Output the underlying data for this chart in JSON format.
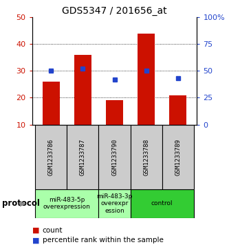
{
  "title": "GDS5347 / 201656_at",
  "samples": [
    "GSM1233786",
    "GSM1233787",
    "GSM1233790",
    "GSM1233788",
    "GSM1233789"
  ],
  "counts": [
    26,
    36,
    19,
    44,
    21
  ],
  "percentiles": [
    50,
    52,
    42,
    50,
    43
  ],
  "left_ylim": [
    10,
    50
  ],
  "right_ylim": [
    0,
    100
  ],
  "left_yticks": [
    10,
    20,
    30,
    40,
    50
  ],
  "right_yticks": [
    0,
    25,
    50,
    75,
    100
  ],
  "right_yticklabels": [
    "0",
    "25",
    "50",
    "75",
    "100%"
  ],
  "bar_color": "#cc1100",
  "marker_color": "#2244cc",
  "grid_color": "#444444",
  "protocol_groups": [
    {
      "label": "miR-483-5p\noverexpression",
      "samples": [
        "GSM1233786",
        "GSM1233787"
      ],
      "color": "#aaffaa"
    },
    {
      "label": "miR-483-3p\noverexpr\nession",
      "samples": [
        "GSM1233790"
      ],
      "color": "#aaffaa"
    },
    {
      "label": "control",
      "samples": [
        "GSM1233788",
        "GSM1233789"
      ],
      "color": "#33cc33"
    }
  ],
  "legend_count_label": "count",
  "legend_percentile_label": "percentile rank within the sample",
  "protocol_label": "protocol",
  "sample_box_color": "#cccccc",
  "bar_width": 0.55
}
